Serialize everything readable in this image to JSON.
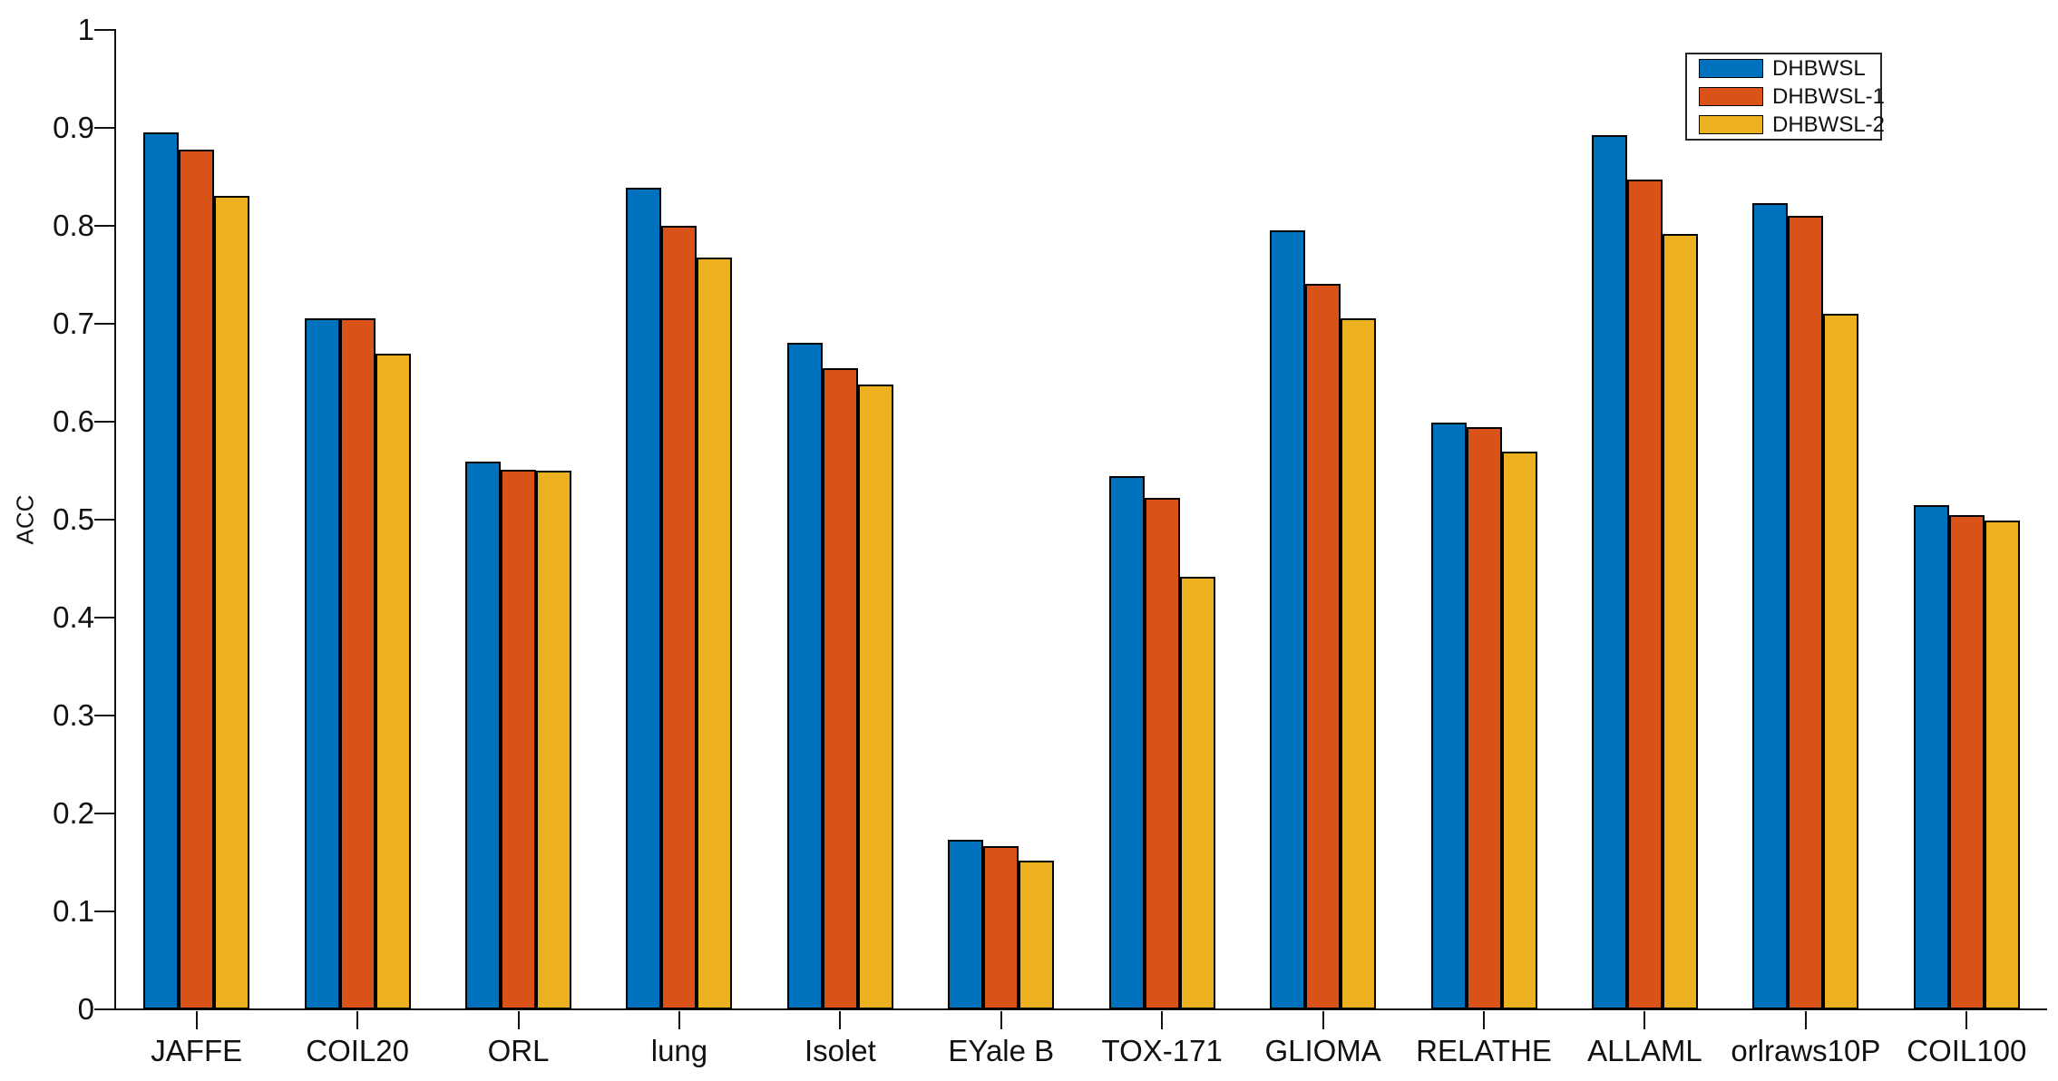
{
  "chart_data": {
    "type": "bar",
    "title": "",
    "xlabel": "",
    "ylabel": "ACC",
    "ylim": [
      0,
      1
    ],
    "grid": false,
    "legend_position": "top-right",
    "axis_color": "#111111",
    "bar_edge_color": "#000000",
    "ytick_values": [
      0,
      0.1,
      0.2,
      0.3,
      0.4,
      0.5,
      0.6,
      0.7,
      0.8,
      0.9,
      1
    ],
    "ytick_labels": [
      "0",
      "0.1",
      "0.2",
      "0.3",
      "0.4",
      "0.5",
      "0.6",
      "0.7",
      "0.8",
      "0.9",
      "1"
    ],
    "categories": [
      "JAFFE",
      "COIL20",
      "ORL",
      "lung",
      "Isolet",
      "EYale B",
      "TOX-171",
      "GLIOMA",
      "RELATHE",
      "ALLAML",
      "orlraws10P",
      "COIL100"
    ],
    "series": [
      {
        "name": "DHBWSL",
        "color": "#0072BD",
        "values": [
          0.895,
          0.706,
          0.559,
          0.839,
          0.681,
          0.173,
          0.544,
          0.795,
          0.599,
          0.893,
          0.823,
          0.515
        ]
      },
      {
        "name": "DHBWSL-1",
        "color": "#D95319",
        "values": [
          0.878,
          0.706,
          0.551,
          0.8,
          0.655,
          0.167,
          0.522,
          0.741,
          0.594,
          0.847,
          0.81,
          0.505
        ]
      },
      {
        "name": "DHBWSL-2",
        "color": "#EDB120",
        "values": [
          0.831,
          0.669,
          0.55,
          0.768,
          0.638,
          0.152,
          0.442,
          0.706,
          0.569,
          0.792,
          0.71,
          0.499
        ]
      }
    ]
  }
}
